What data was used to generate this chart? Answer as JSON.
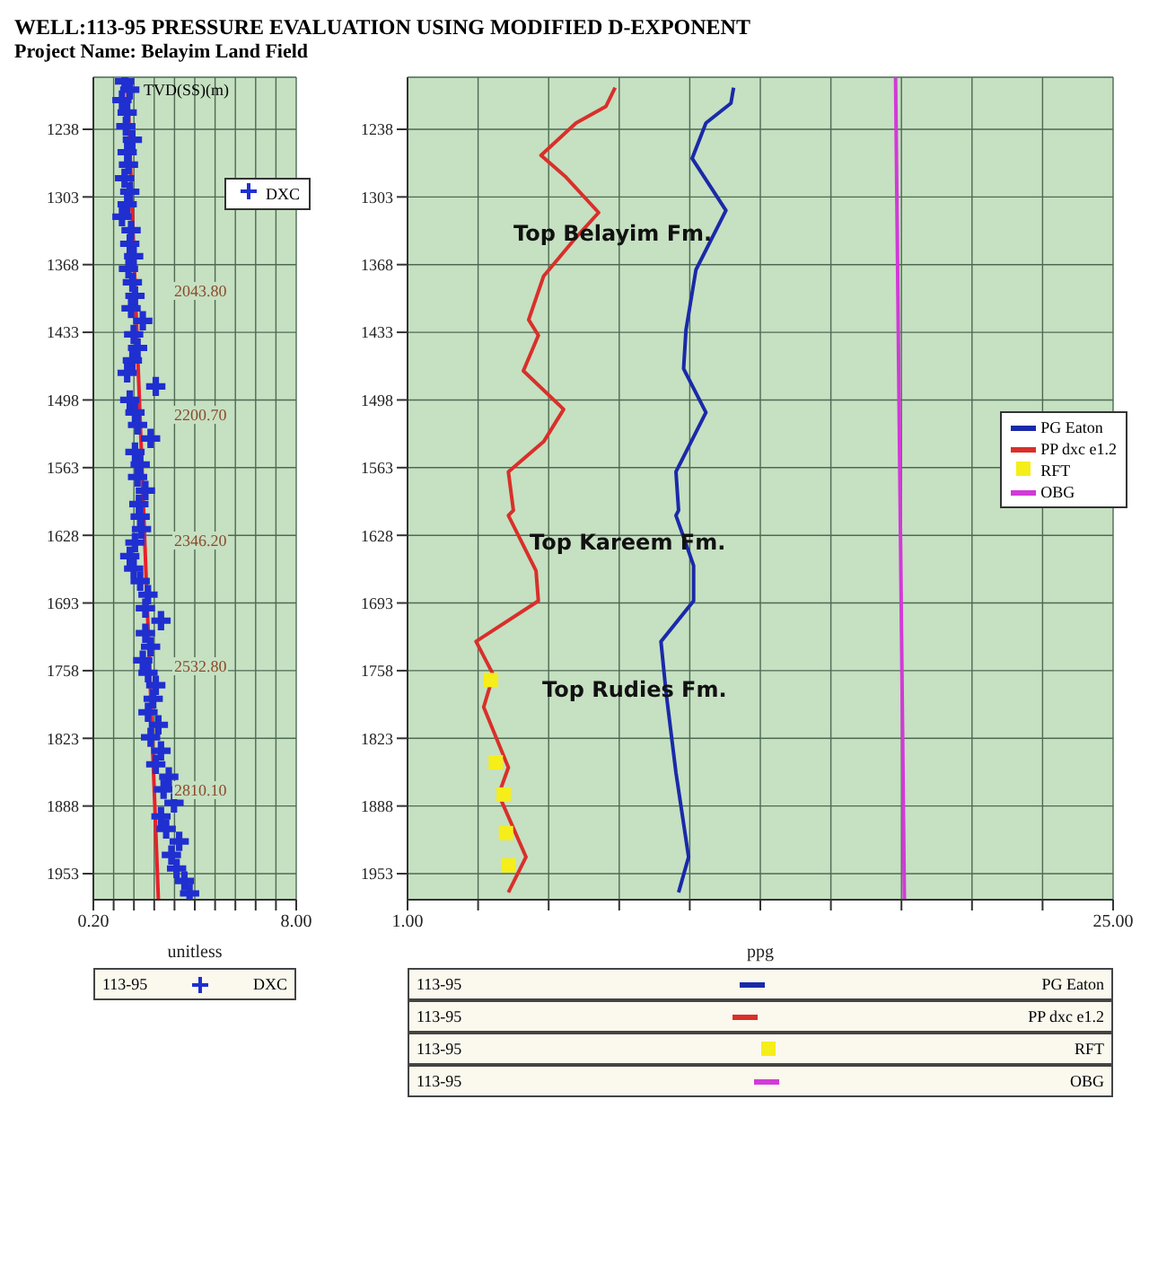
{
  "chart_data": [
    {
      "type": "scatter",
      "title": "WELL:113-95 PRESSURE EVALUATION USING MODIFIED D-EXPONENT",
      "subtitle": "Project Name: Belayim Land Field",
      "ylabel": "TVD(SS)(m)",
      "xlabel": "unitless",
      "xlim": [
        0.2,
        8
      ],
      "xticks": [
        {
          "value": 0.2,
          "label": "0.20"
        },
        {
          "value": 0.98,
          "label": null
        },
        {
          "value": 1.76,
          "label": null
        },
        {
          "value": 2.54,
          "label": null
        },
        {
          "value": 3.32,
          "label": null
        },
        {
          "value": 4.1,
          "label": null
        },
        {
          "value": 4.88,
          "label": null
        },
        {
          "value": 5.66,
          "label": null
        },
        {
          "value": 6.44,
          "label": null
        },
        {
          "value": 7.22,
          "label": null
        },
        {
          "value": 8,
          "label": "8.00"
        }
      ],
      "ylim": [
        1978,
        1188
      ],
      "yticks": [
        1238,
        1303,
        1368,
        1433,
        1498,
        1563,
        1628,
        1693,
        1758,
        1823,
        1888,
        1953
      ],
      "grid": true,
      "legend": "top right",
      "series": [
        {
          "name": "DXC",
          "marker": "cross",
          "color": "#1f2fd0",
          "x": [
            1.4,
            1.6,
            1.3,
            1.5,
            1.45,
            1.7,
            1.5,
            1.55,
            1.4,
            1.6,
            1.5,
            1.3,
            1.65,
            1.6,
            1.75,
            1.55,
            1.7,
            1.8,
            1.65,
            2.1,
            1.75,
            1.9,
            1.7,
            1.5,
            2.6,
            1.6,
            1.8,
            1.9,
            2.4,
            1.8,
            2.0,
            1.9,
            2.2,
            1.95,
            2.0,
            2.05,
            1.8,
            1.6,
            1.75,
            2.0,
            2.3,
            2.2,
            2.8,
            2.2,
            2.4,
            2.1,
            2.3,
            2.6,
            2.5,
            2.3,
            2.7,
            2.4,
            2.8,
            2.6,
            3.1,
            2.9,
            3.3,
            2.8,
            3.0,
            3.5,
            3.2,
            3.4,
            3.7,
            3.9
          ],
          "values": [
            1192,
            1200,
            1210,
            1222,
            1235,
            1248,
            1260,
            1272,
            1285,
            1298,
            1310,
            1322,
            1335,
            1348,
            1360,
            1372,
            1385,
            1398,
            1410,
            1422,
            1435,
            1448,
            1460,
            1472,
            1485,
            1498,
            1510,
            1522,
            1535,
            1548,
            1560,
            1572,
            1585,
            1598,
            1610,
            1622,
            1635,
            1648,
            1660,
            1672,
            1685,
            1698,
            1710,
            1722,
            1735,
            1748,
            1760,
            1772,
            1785,
            1798,
            1810,
            1822,
            1835,
            1848,
            1860,
            1872,
            1885,
            1898,
            1910,
            1922,
            1935,
            1948,
            1960,
            1972
          ]
        },
        {
          "type": "line",
          "color": "#e8202a",
          "x": [
            1.5,
            2.7
          ],
          "values": [
            1188,
            1978
          ]
        }
      ],
      "annotations": [
        "2043.80",
        "2200.70",
        "2346.20",
        "2532.80",
        "2810.10",
        "113-95"
      ]
    },
    {
      "type": "line",
      "xlabel": "ppg",
      "xlim": [
        1,
        25
      ],
      "xticks": [
        {
          "value": 1,
          "label": "1.00"
        },
        {
          "value": 3.4,
          "label": null
        },
        {
          "value": 5.8,
          "label": null
        },
        {
          "value": 8.2,
          "label": null
        },
        {
          "value": 10.6,
          "label": null
        },
        {
          "value": 13,
          "label": null
        },
        {
          "value": 15.4,
          "label": null
        },
        {
          "value": 17.8,
          "label": null
        },
        {
          "value": 20.2,
          "label": null
        },
        {
          "value": 22.6,
          "label": null
        },
        {
          "value": 25,
          "label": "25.00"
        }
      ],
      "ylim": [
        1978,
        1188
      ],
      "yticks": [
        1238,
        1303,
        1368,
        1433,
        1498,
        1563,
        1628,
        1693,
        1758,
        1823,
        1888,
        1953
      ],
      "grid": true,
      "legend": "right",
      "series": [
        {
          "name": "PG Eaton",
          "color": "#1a2aa8",
          "x": [
            12.09,
            12.0,
            11.15,
            10.68,
            11.83,
            10.81,
            10.47,
            10.39,
            11.15,
            10.13,
            10.22,
            10.13,
            10.73,
            10.73,
            9.62,
            9.79,
            10.13,
            10.56,
            10.22
          ],
          "values": [
            1198,
            1213,
            1232,
            1266,
            1316,
            1373,
            1431,
            1468,
            1510,
            1567,
            1604,
            1609,
            1657,
            1691,
            1730,
            1778,
            1856,
            1937,
            1971
          ]
        },
        {
          "name": "PP dxc e1.2",
          "color": "#d8302a",
          "x": [
            8.06,
            7.75,
            6.73,
            5.54,
            6.39,
            7.5,
            6.73,
            5.63,
            5.12,
            5.45,
            4.94,
            6.31,
            5.63,
            4.43,
            4.6,
            4.43,
            5.37,
            5.45,
            3.33,
            3.92,
            3.59,
            4.43,
            4.1,
            5.03,
            4.43
          ],
          "values": [
            1198,
            1216,
            1232,
            1263,
            1284,
            1318,
            1342,
            1379,
            1421,
            1436,
            1470,
            1507,
            1538,
            1567,
            1604,
            1609,
            1662,
            1691,
            1730,
            1762,
            1793,
            1851,
            1877,
            1937,
            1971
          ]
        },
        {
          "name": "RFT",
          "type": "scatter",
          "marker": "square",
          "color": "#f5ee1a",
          "x": [
            3.84,
            4.0,
            4.27,
            4.35,
            4.43
          ],
          "values": [
            1767,
            1846,
            1877,
            1914,
            1945
          ]
        },
        {
          "name": "OBG",
          "color": "#d23ad8",
          "x": [
            17.6,
            17.9
          ],
          "values": [
            1188,
            1978
          ]
        }
      ],
      "annotations": [
        "Top Belayim Fm.",
        "Top Kareem Fm.",
        "Top Rudies Fm.",
        "113-95"
      ]
    }
  ]
}
